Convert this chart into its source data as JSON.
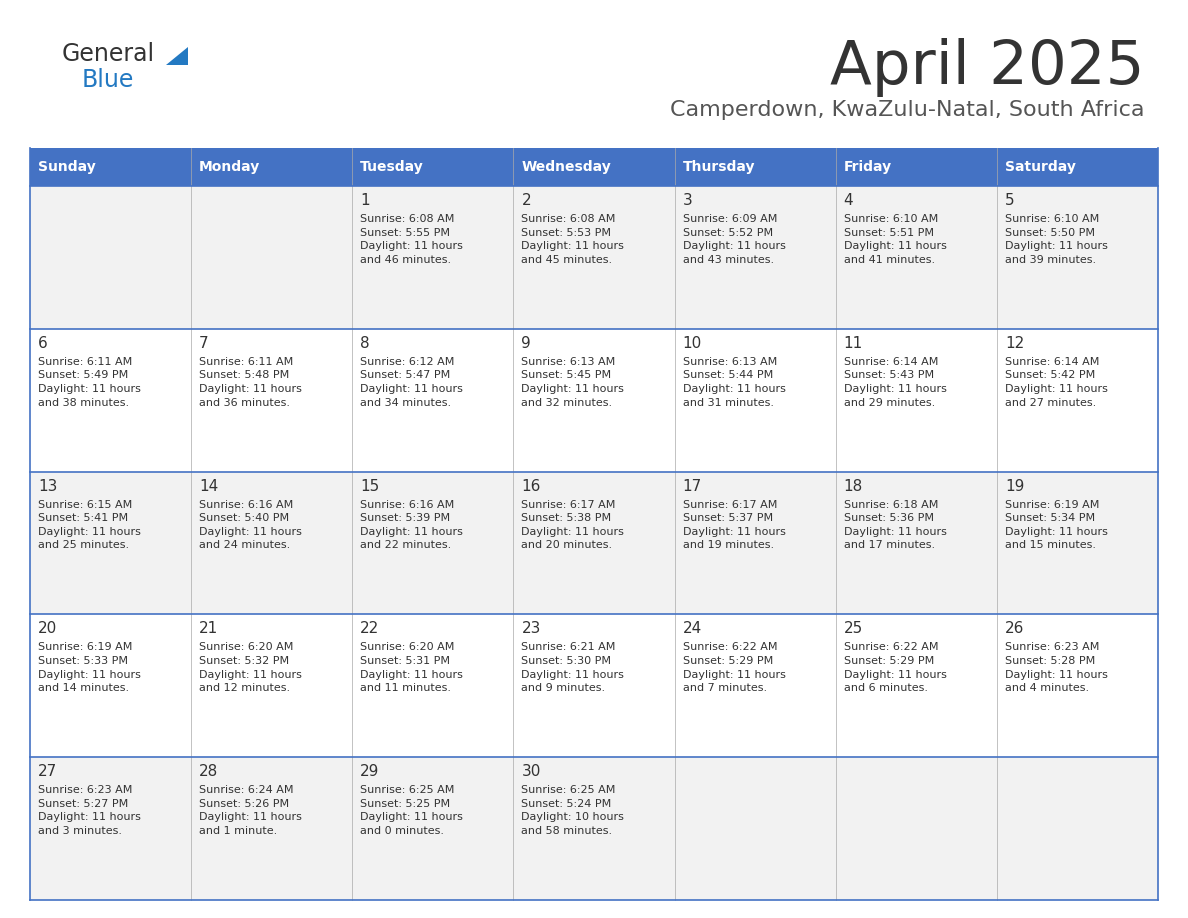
{
  "title": "April 2025",
  "subtitle": "Camperdown, KwaZulu-Natal, South Africa",
  "title_color": "#333333",
  "subtitle_color": "#555555",
  "header_bg_color": "#4472C4",
  "header_text_color": "#FFFFFF",
  "days_of_week": [
    "Sunday",
    "Monday",
    "Tuesday",
    "Wednesday",
    "Thursday",
    "Friday",
    "Saturday"
  ],
  "row_bg_even": "#F2F2F2",
  "row_bg_odd": "#FFFFFF",
  "cell_border_color": "#4472C4",
  "text_color": "#333333",
  "calendar": [
    [
      "",
      "",
      "1\nSunrise: 6:08 AM\nSunset: 5:55 PM\nDaylight: 11 hours\nand 46 minutes.",
      "2\nSunrise: 6:08 AM\nSunset: 5:53 PM\nDaylight: 11 hours\nand 45 minutes.",
      "3\nSunrise: 6:09 AM\nSunset: 5:52 PM\nDaylight: 11 hours\nand 43 minutes.",
      "4\nSunrise: 6:10 AM\nSunset: 5:51 PM\nDaylight: 11 hours\nand 41 minutes.",
      "5\nSunrise: 6:10 AM\nSunset: 5:50 PM\nDaylight: 11 hours\nand 39 minutes."
    ],
    [
      "6\nSunrise: 6:11 AM\nSunset: 5:49 PM\nDaylight: 11 hours\nand 38 minutes.",
      "7\nSunrise: 6:11 AM\nSunset: 5:48 PM\nDaylight: 11 hours\nand 36 minutes.",
      "8\nSunrise: 6:12 AM\nSunset: 5:47 PM\nDaylight: 11 hours\nand 34 minutes.",
      "9\nSunrise: 6:13 AM\nSunset: 5:45 PM\nDaylight: 11 hours\nand 32 minutes.",
      "10\nSunrise: 6:13 AM\nSunset: 5:44 PM\nDaylight: 11 hours\nand 31 minutes.",
      "11\nSunrise: 6:14 AM\nSunset: 5:43 PM\nDaylight: 11 hours\nand 29 minutes.",
      "12\nSunrise: 6:14 AM\nSunset: 5:42 PM\nDaylight: 11 hours\nand 27 minutes."
    ],
    [
      "13\nSunrise: 6:15 AM\nSunset: 5:41 PM\nDaylight: 11 hours\nand 25 minutes.",
      "14\nSunrise: 6:16 AM\nSunset: 5:40 PM\nDaylight: 11 hours\nand 24 minutes.",
      "15\nSunrise: 6:16 AM\nSunset: 5:39 PM\nDaylight: 11 hours\nand 22 minutes.",
      "16\nSunrise: 6:17 AM\nSunset: 5:38 PM\nDaylight: 11 hours\nand 20 minutes.",
      "17\nSunrise: 6:17 AM\nSunset: 5:37 PM\nDaylight: 11 hours\nand 19 minutes.",
      "18\nSunrise: 6:18 AM\nSunset: 5:36 PM\nDaylight: 11 hours\nand 17 minutes.",
      "19\nSunrise: 6:19 AM\nSunset: 5:34 PM\nDaylight: 11 hours\nand 15 minutes."
    ],
    [
      "20\nSunrise: 6:19 AM\nSunset: 5:33 PM\nDaylight: 11 hours\nand 14 minutes.",
      "21\nSunrise: 6:20 AM\nSunset: 5:32 PM\nDaylight: 11 hours\nand 12 minutes.",
      "22\nSunrise: 6:20 AM\nSunset: 5:31 PM\nDaylight: 11 hours\nand 11 minutes.",
      "23\nSunrise: 6:21 AM\nSunset: 5:30 PM\nDaylight: 11 hours\nand 9 minutes.",
      "24\nSunrise: 6:22 AM\nSunset: 5:29 PM\nDaylight: 11 hours\nand 7 minutes.",
      "25\nSunrise: 6:22 AM\nSunset: 5:29 PM\nDaylight: 11 hours\nand 6 minutes.",
      "26\nSunrise: 6:23 AM\nSunset: 5:28 PM\nDaylight: 11 hours\nand 4 minutes."
    ],
    [
      "27\nSunrise: 6:23 AM\nSunset: 5:27 PM\nDaylight: 11 hours\nand 3 minutes.",
      "28\nSunrise: 6:24 AM\nSunset: 5:26 PM\nDaylight: 11 hours\nand 1 minute.",
      "29\nSunrise: 6:25 AM\nSunset: 5:25 PM\nDaylight: 11 hours\nand 0 minutes.",
      "30\nSunrise: 6:25 AM\nSunset: 5:24 PM\nDaylight: 10 hours\nand 58 minutes.",
      "",
      "",
      ""
    ]
  ],
  "logo_color_general": "#333333",
  "logo_color_blue": "#2379C2",
  "logo_triangle_color": "#2379C2"
}
